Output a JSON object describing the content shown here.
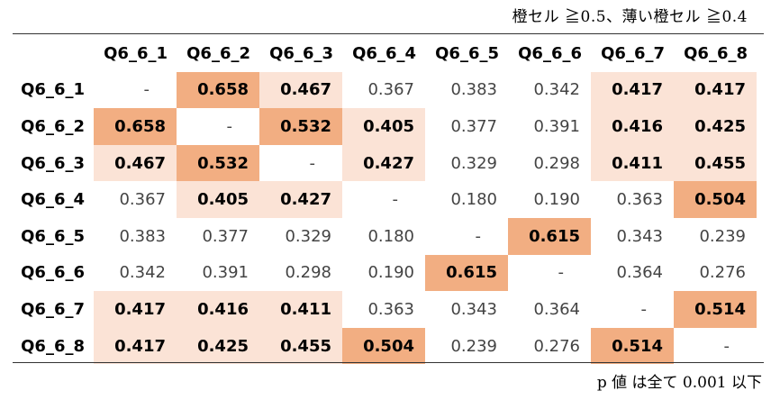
{
  "legend": "橙セル ≧0.5、薄い橙セル ≧0.4",
  "footnote": "p 値 は全て 0.001 以下",
  "colors": {
    "strong": "#f2ae82",
    "light": "#fbe3d6"
  },
  "table": {
    "columns": [
      "Q6_6_1",
      "Q6_6_2",
      "Q6_6_3",
      "Q6_6_4",
      "Q6_6_5",
      "Q6_6_6",
      "Q6_6_7",
      "Q6_6_8"
    ],
    "rows": [
      {
        "label": "Q6_6_1",
        "cells": [
          "-",
          "0.658",
          "0.467",
          "0.367",
          "0.383",
          "0.342",
          "0.417",
          "0.417"
        ]
      },
      {
        "label": "Q6_6_2",
        "cells": [
          "0.658",
          "-",
          "0.532",
          "0.405",
          "0.377",
          "0.391",
          "0.416",
          "0.425"
        ]
      },
      {
        "label": "Q6_6_3",
        "cells": [
          "0.467",
          "0.532",
          "-",
          "0.427",
          "0.329",
          "0.298",
          "0.411",
          "0.455"
        ]
      },
      {
        "label": "Q6_6_4",
        "cells": [
          "0.367",
          "0.405",
          "0.427",
          "-",
          "0.180",
          "0.190",
          "0.363",
          "0.504"
        ]
      },
      {
        "label": "Q6_6_5",
        "cells": [
          "0.383",
          "0.377",
          "0.329",
          "0.180",
          "-",
          "0.615",
          "0.343",
          "0.239"
        ]
      },
      {
        "label": "Q6_6_6",
        "cells": [
          "0.342",
          "0.391",
          "0.298",
          "0.190",
          "0.615",
          "-",
          "0.364",
          "0.276"
        ]
      },
      {
        "label": "Q6_6_7",
        "cells": [
          "0.417",
          "0.416",
          "0.411",
          "0.363",
          "0.343",
          "0.364",
          "-",
          "0.514"
        ]
      },
      {
        "label": "Q6_6_8",
        "cells": [
          "0.417",
          "0.425",
          "0.455",
          "0.504",
          "0.239",
          "0.276",
          "0.514",
          "-"
        ]
      }
    ]
  }
}
